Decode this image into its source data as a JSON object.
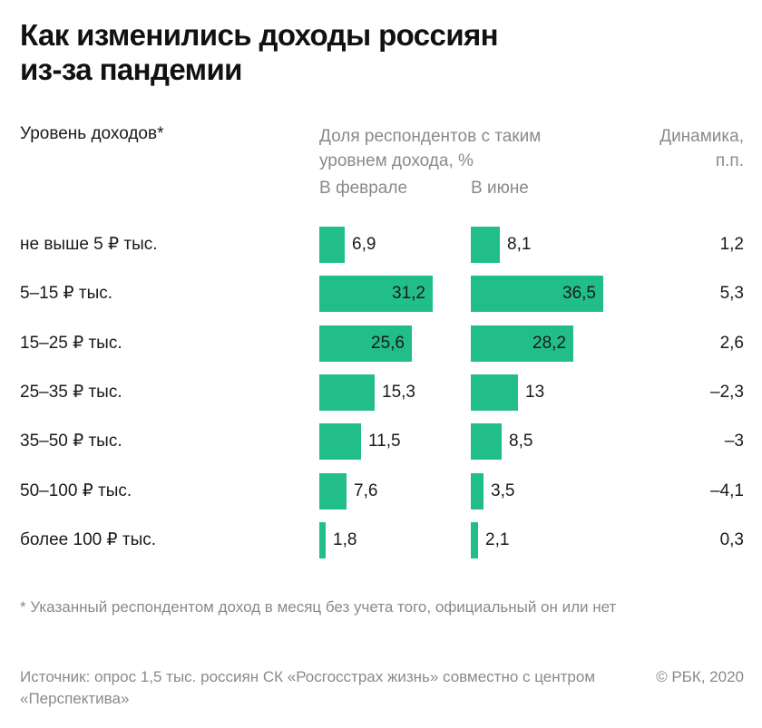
{
  "title_lines": [
    "Как изменились доходы россиян",
    "из-за пандемии"
  ],
  "header": {
    "income_level": "Уровень доходов*",
    "share_line1": "Доля респондентов с таким",
    "share_line2": "уровнем дохода, %",
    "dynamics_line1": "Динамика,",
    "dynamics_line2": "п.п.",
    "february": "В феврале",
    "june": "В июне"
  },
  "colors": {
    "bar": "#22be8a"
  },
  "chart_data": {
    "type": "bar",
    "categories": [
      "не выше 5 ₽ тыс.",
      "5–15 ₽ тыс.",
      "15–25 ₽ тыс.",
      "25–35 ₽ тыс.",
      "35–50 ₽ тыс.",
      "50–100 ₽ тыс.",
      "более 100 ₽ тыс."
    ],
    "series": [
      {
        "name": "В феврале",
        "values": [
          6.9,
          31.2,
          25.6,
          15.3,
          11.5,
          7.6,
          1.8
        ],
        "labels": [
          "6,9",
          "31,2",
          "25,6",
          "15,3",
          "11,5",
          "7,6",
          "1,8"
        ]
      },
      {
        "name": "В июне",
        "values": [
          8.1,
          36.5,
          28.2,
          13,
          8.5,
          3.5,
          2.1
        ],
        "labels": [
          "8,1",
          "36,5",
          "28,2",
          "13",
          "8,5",
          "3,5",
          "2,1"
        ]
      }
    ],
    "dynamics": [
      1.2,
      5.3,
      2.6,
      -2.3,
      -3,
      -4.1,
      0.3
    ],
    "dynamics_labels": [
      "1,2",
      "5,3",
      "2,6",
      "–2,3",
      "–3",
      "–4,1",
      "0,3"
    ]
  },
  "footnote": "* Указанный респондентом доход в месяц без учета того, официальный он или нет",
  "source": "Источник: опрос 1,5 тыс. россиян СК «Росгосстрах жизнь» совместно с центром «Перспектива»",
  "copyright": "© РБК, 2020"
}
